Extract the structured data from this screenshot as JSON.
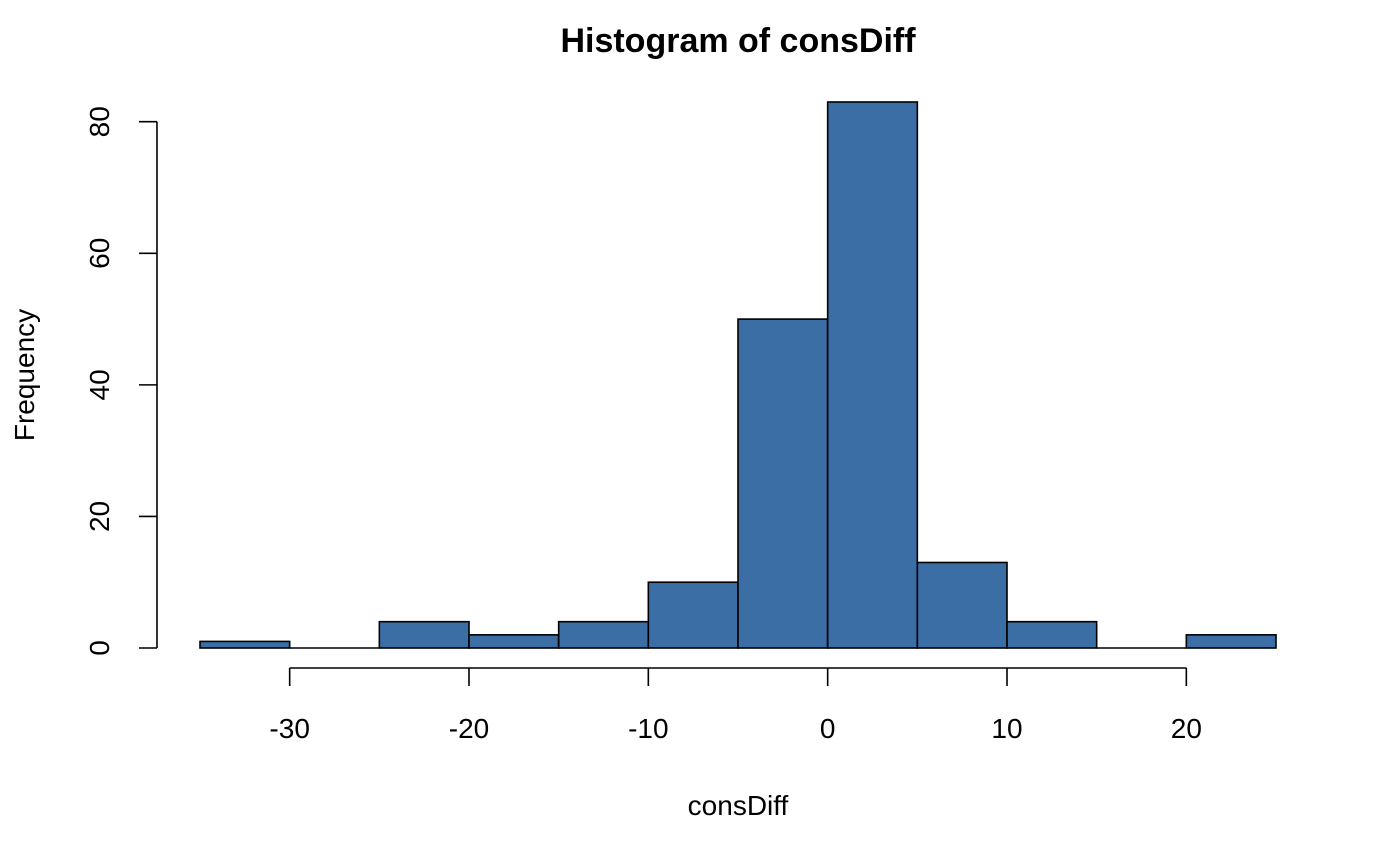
{
  "chart_data": {
    "type": "bar",
    "title": "Histogram of consDiff",
    "xlabel": "consDiff",
    "ylabel": "Frequency",
    "bins": [
      {
        "from": -35,
        "to": -30,
        "count": 1
      },
      {
        "from": -30,
        "to": -25,
        "count": 0
      },
      {
        "from": -25,
        "to": -20,
        "count": 4
      },
      {
        "from": -20,
        "to": -15,
        "count": 2
      },
      {
        "from": -15,
        "to": -10,
        "count": 4
      },
      {
        "from": -10,
        "to": -5,
        "count": 10
      },
      {
        "from": -5,
        "to": 0,
        "count": 50
      },
      {
        "from": 0,
        "to": 5,
        "count": 83
      },
      {
        "from": 5,
        "to": 10,
        "count": 13
      },
      {
        "from": 10,
        "to": 15,
        "count": 4
      },
      {
        "from": 15,
        "to": 20,
        "count": 0
      },
      {
        "from": 20,
        "to": 25,
        "count": 2
      }
    ],
    "xticks": [
      -30,
      -20,
      -10,
      0,
      10,
      20
    ],
    "yticks": [
      0,
      20,
      40,
      60,
      80
    ],
    "xlim": [
      -35,
      25
    ],
    "ylim": [
      0,
      83
    ],
    "grid": false,
    "legend": "none",
    "bar_color": "#3a6ea5",
    "edge_color": "#000000"
  }
}
